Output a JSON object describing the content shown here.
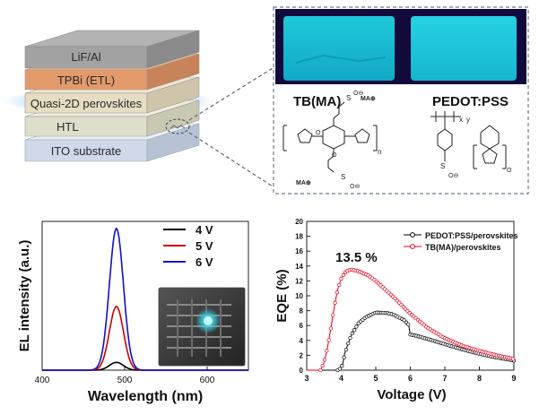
{
  "device_stack": {
    "layers": [
      "LiF/Al",
      "TPBi (ETL)",
      "Quasi-2D perovskites",
      "HTL",
      "ITO substrate"
    ]
  },
  "htl_panel": {
    "materials": [
      "TB(MA)",
      "PEDOT:PSS"
    ],
    "structure_text": {
      "ma_plus": "MA⊕",
      "so3_s": "S",
      "o": "O",
      "o_minus": "O⊖",
      "n_sub": "n",
      "x_sub": "x",
      "y_sub": "y"
    }
  },
  "chart_data": [
    {
      "type": "line",
      "xlabel": "Wavelength (nm)",
      "ylabel": "EL intensity (a.u.)",
      "xlim": [
        400,
        650
      ],
      "ylim": [
        0,
        1.05
      ],
      "xticks": [
        400,
        500,
        600
      ],
      "legend_position": "top-right",
      "inset_photo": "lit device photo (cyan emission)",
      "peak_wavelength": 490,
      "series": [
        {
          "name": "4 V",
          "color": "#000000",
          "peak": 0.055,
          "fwhm": 20
        },
        {
          "name": "5 V",
          "color": "#d00000",
          "peak": 0.45,
          "fwhm": 20
        },
        {
          "name": "6 V",
          "color": "#1010c8",
          "peak": 1.0,
          "fwhm": 20
        }
      ]
    },
    {
      "type": "line",
      "xlabel": "Voltage (V)",
      "ylabel": "EQE (%)",
      "xlim": [
        3,
        9
      ],
      "ylim": [
        0,
        20
      ],
      "xticks": [
        3,
        4,
        5,
        6,
        7,
        8,
        9
      ],
      "yticks": [
        0,
        2,
        4,
        6,
        8,
        10,
        12,
        14,
        16,
        18,
        20
      ],
      "legend_position": "top-right",
      "annotation": "13.5 %",
      "series": [
        {
          "name": "PEDOT:PSS/perovskites",
          "color": "#000000",
          "marker": "circle-open",
          "x": [
            3.9,
            4.0,
            4.05,
            4.1,
            4.2,
            4.3,
            4.5,
            4.7,
            5.0,
            5.3,
            5.5,
            5.8,
            5.95,
            6.0,
            6.2,
            6.5,
            7.0,
            7.5,
            8.0,
            8.5,
            9.0
          ],
          "y": [
            0.0,
            0.3,
            1.0,
            2.2,
            3.6,
            4.8,
            6.3,
            7.1,
            7.75,
            7.7,
            7.5,
            6.8,
            6.1,
            4.8,
            4.6,
            4.2,
            3.5,
            2.8,
            2.2,
            1.7,
            1.3
          ]
        },
        {
          "name": "TB(MA)/perovskites",
          "color": "#e0001a",
          "marker": "circle-open",
          "x": [
            3.4,
            3.5,
            3.6,
            3.7,
            3.8,
            3.9,
            4.0,
            4.1,
            4.2,
            4.3,
            4.5,
            4.8,
            5.0,
            5.5,
            6.0,
            6.5,
            7.0,
            7.5,
            8.0,
            8.5,
            9.0
          ],
          "y": [
            0.0,
            1.0,
            3.0,
            5.6,
            8.6,
            10.9,
            12.3,
            13.1,
            13.4,
            13.5,
            13.3,
            12.7,
            12.0,
            9.9,
            7.6,
            5.7,
            4.3,
            3.3,
            2.6,
            2.0,
            1.5
          ]
        }
      ]
    }
  ]
}
